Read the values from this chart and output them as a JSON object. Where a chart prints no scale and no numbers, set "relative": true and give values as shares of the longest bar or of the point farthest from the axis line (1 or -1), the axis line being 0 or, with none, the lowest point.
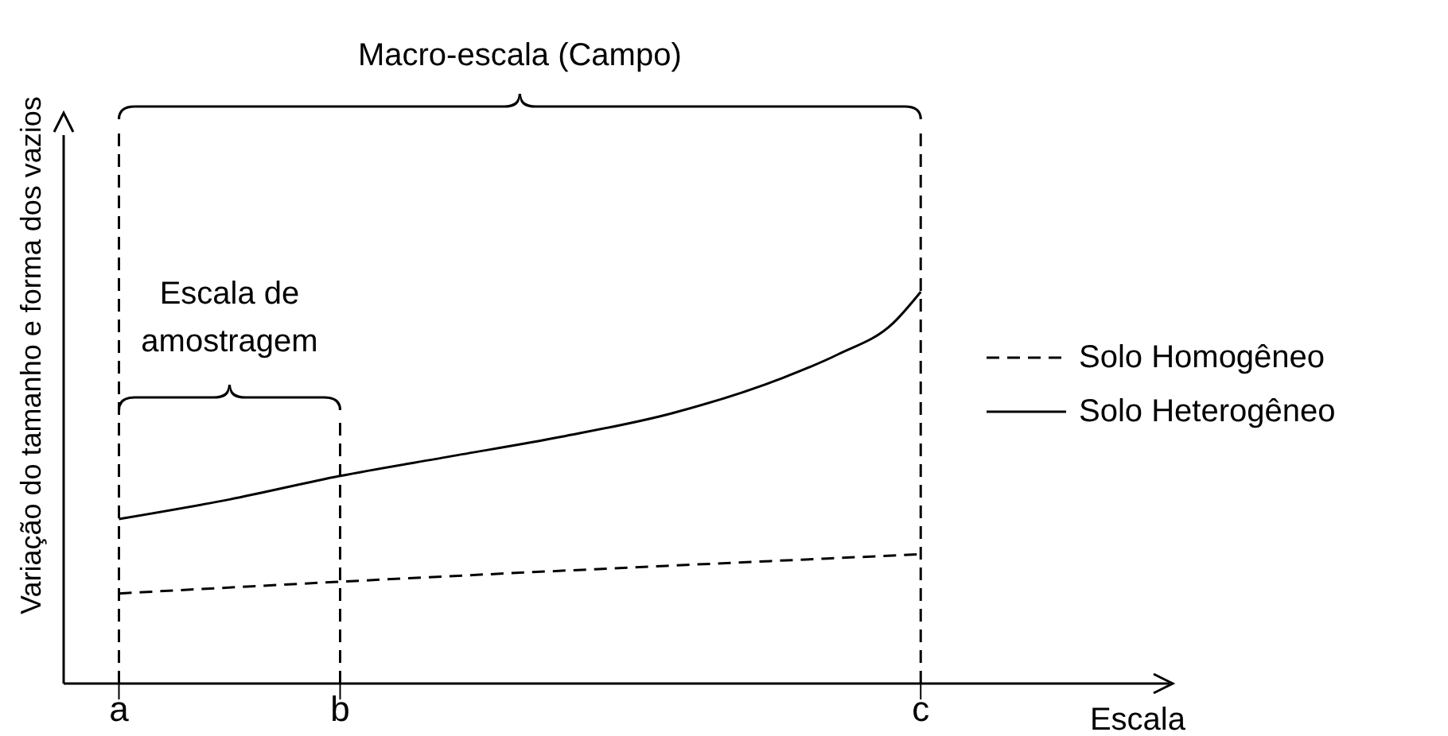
{
  "chart_data": {
    "type": "line",
    "relative": true,
    "ylabel": "Variação do tamanho e forma dos vazios",
    "xlabel": "Escala",
    "categories": [
      null,
      null,
      "a",
      null,
      null,
      null,
      null,
      null,
      null,
      null,
      "b",
      null,
      null,
      null,
      null,
      null,
      null,
      null,
      null,
      null,
      null,
      null,
      null,
      null,
      null,
      null,
      null,
      null,
      null,
      null,
      null,
      "c",
      null,
      null,
      null,
      null,
      null,
      null,
      null,
      null,
      null
    ],
    "series": [
      {
        "name": "Solo Homogêneo",
        "color": "#000000",
        "line_style": "dashed",
        "values": [
          null,
          null,
          0.23,
          null,
          null,
          null,
          null,
          null,
          null,
          null,
          0.26,
          null,
          null,
          null,
          null,
          null,
          null,
          null,
          null,
          null,
          null,
          null,
          null,
          null,
          null,
          null,
          null,
          null,
          null,
          null,
          null,
          0.33,
          null,
          null,
          null,
          null,
          null,
          null,
          null,
          null,
          null
        ]
      },
      {
        "name": "Solo Heterogêneo",
        "color": "#000000",
        "line_style": "solid",
        "values": [
          null,
          null,
          0.42,
          null,
          null,
          null,
          0.47,
          null,
          null,
          null,
          0.53,
          null,
          null,
          null,
          0.58,
          null,
          null,
          null,
          0.63,
          null,
          null,
          null,
          0.69,
          null,
          null,
          null,
          0.78,
          null,
          0.84,
          null,
          0.92,
          1,
          null,
          null,
          null,
          null,
          null,
          null,
          null,
          null,
          null
        ]
      }
    ],
    "ref_lines": [
      {
        "axis": "x",
        "value": "a",
        "line_style": "dashed",
        "color": "#000000"
      },
      {
        "axis": "x",
        "value": "b",
        "line_style": "dashed",
        "color": "#000000"
      },
      {
        "axis": "x",
        "value": "c",
        "line_style": "dashed",
        "color": "#000000"
      }
    ],
    "annotations": [
      "Macro-escala (Campo)",
      "Escala de amostragem"
    ],
    "legend": "right",
    "grid": false,
    "marker": "none"
  }
}
